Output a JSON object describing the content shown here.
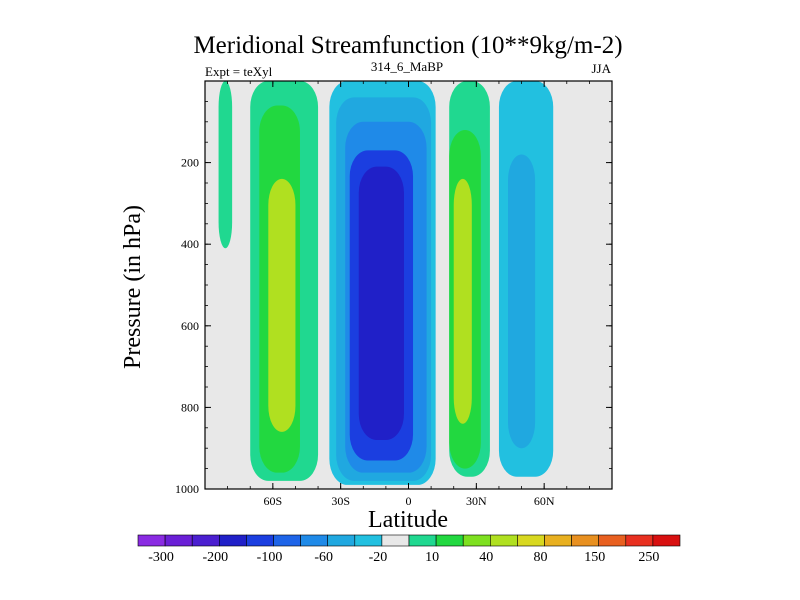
{
  "chart_data": {
    "type": "heatmap",
    "title": "Meridional Streamfunction (10**9kg/m-2)",
    "left_label": "Expt = teXyl",
    "center_label": "314_6_MaBP",
    "right_label": "JJA",
    "xlabel": "Latitude",
    "ylabel": "Pressure (in hPa)",
    "xlim": [
      -90,
      90
    ],
    "ylim": [
      1000,
      0
    ],
    "x_ticks": [
      -60,
      -30,
      0,
      30,
      60
    ],
    "x_tick_labels": [
      "60S",
      "30S",
      "0",
      "30N",
      "60N"
    ],
    "y_ticks": [
      200,
      400,
      600,
      800,
      1000
    ],
    "y_tick_labels": [
      "200",
      "400",
      "600",
      "800",
      "1000"
    ],
    "colorbar": {
      "colors": [
        "#8a2be2",
        "#6a1fd6",
        "#4b1fd0",
        "#2020c8",
        "#1b3ee0",
        "#1e64e8",
        "#1f8ae8",
        "#20a8e0",
        "#22c0e0",
        "#e8e8e8",
        "#20d890",
        "#22d840",
        "#7ee020",
        "#b0e020",
        "#d8d820",
        "#e8b020",
        "#e89020",
        "#e86020",
        "#e83020",
        "#d81010"
      ],
      "labels": [
        "-300",
        "-200",
        "-100",
        "-60",
        "-20",
        "10",
        "40",
        "80",
        "150",
        "250"
      ],
      "label_boundaries": [
        1,
        3,
        5,
        7,
        9,
        11,
        13,
        15,
        17,
        19
      ]
    },
    "regions": [
      {
        "name": "cyan-high-lat-south",
        "color": "#20d890",
        "lat": [
          -84,
          -78
        ],
        "p": [
          0,
          410
        ]
      },
      {
        "name": "cyan-south-cell",
        "color": "#20d890",
        "lat": [
          -70,
          -40
        ],
        "p": [
          0,
          980
        ]
      },
      {
        "name": "green-south-cell",
        "color": "#22d840",
        "lat": [
          -66,
          -48
        ],
        "p": [
          60,
          960
        ]
      },
      {
        "name": "yellow-green-south-core",
        "color": "#b0e020",
        "lat": [
          -62,
          -50
        ],
        "p": [
          240,
          860
        ]
      },
      {
        "name": "light-blue-tropics",
        "color": "#22c0e0",
        "lat": [
          -35,
          12
        ],
        "p": [
          0,
          990
        ]
      },
      {
        "name": "mid-blue-tropics",
        "color": "#20a8e0",
        "lat": [
          -32,
          10
        ],
        "p": [
          40,
          980
        ]
      },
      {
        "name": "blue-tropics",
        "color": "#1f8ae8",
        "lat": [
          -28,
          8
        ],
        "p": [
          100,
          960
        ]
      },
      {
        "name": "deep-blue-tropics",
        "color": "#1b3ee0",
        "lat": [
          -26,
          2
        ],
        "p": [
          170,
          930
        ]
      },
      {
        "name": "darker-blue-core",
        "color": "#2020c8",
        "lat": [
          -22,
          -2
        ],
        "p": [
          210,
          880
        ]
      },
      {
        "name": "green-north-cell",
        "color": "#20d890",
        "lat": [
          18,
          36
        ],
        "p": [
          0,
          970
        ]
      },
      {
        "name": "green-north-inner",
        "color": "#22d840",
        "lat": [
          18,
          32
        ],
        "p": [
          120,
          950
        ]
      },
      {
        "name": "yellow-green-north-core",
        "color": "#b0e020",
        "lat": [
          20,
          28
        ],
        "p": [
          240,
          840
        ]
      },
      {
        "name": "light-blue-north",
        "color": "#22c0e0",
        "lat": [
          40,
          64
        ],
        "p": [
          0,
          970
        ]
      },
      {
        "name": "mid-blue-north",
        "color": "#20a8e0",
        "lat": [
          44,
          56
        ],
        "p": [
          180,
          900
        ]
      }
    ]
  }
}
